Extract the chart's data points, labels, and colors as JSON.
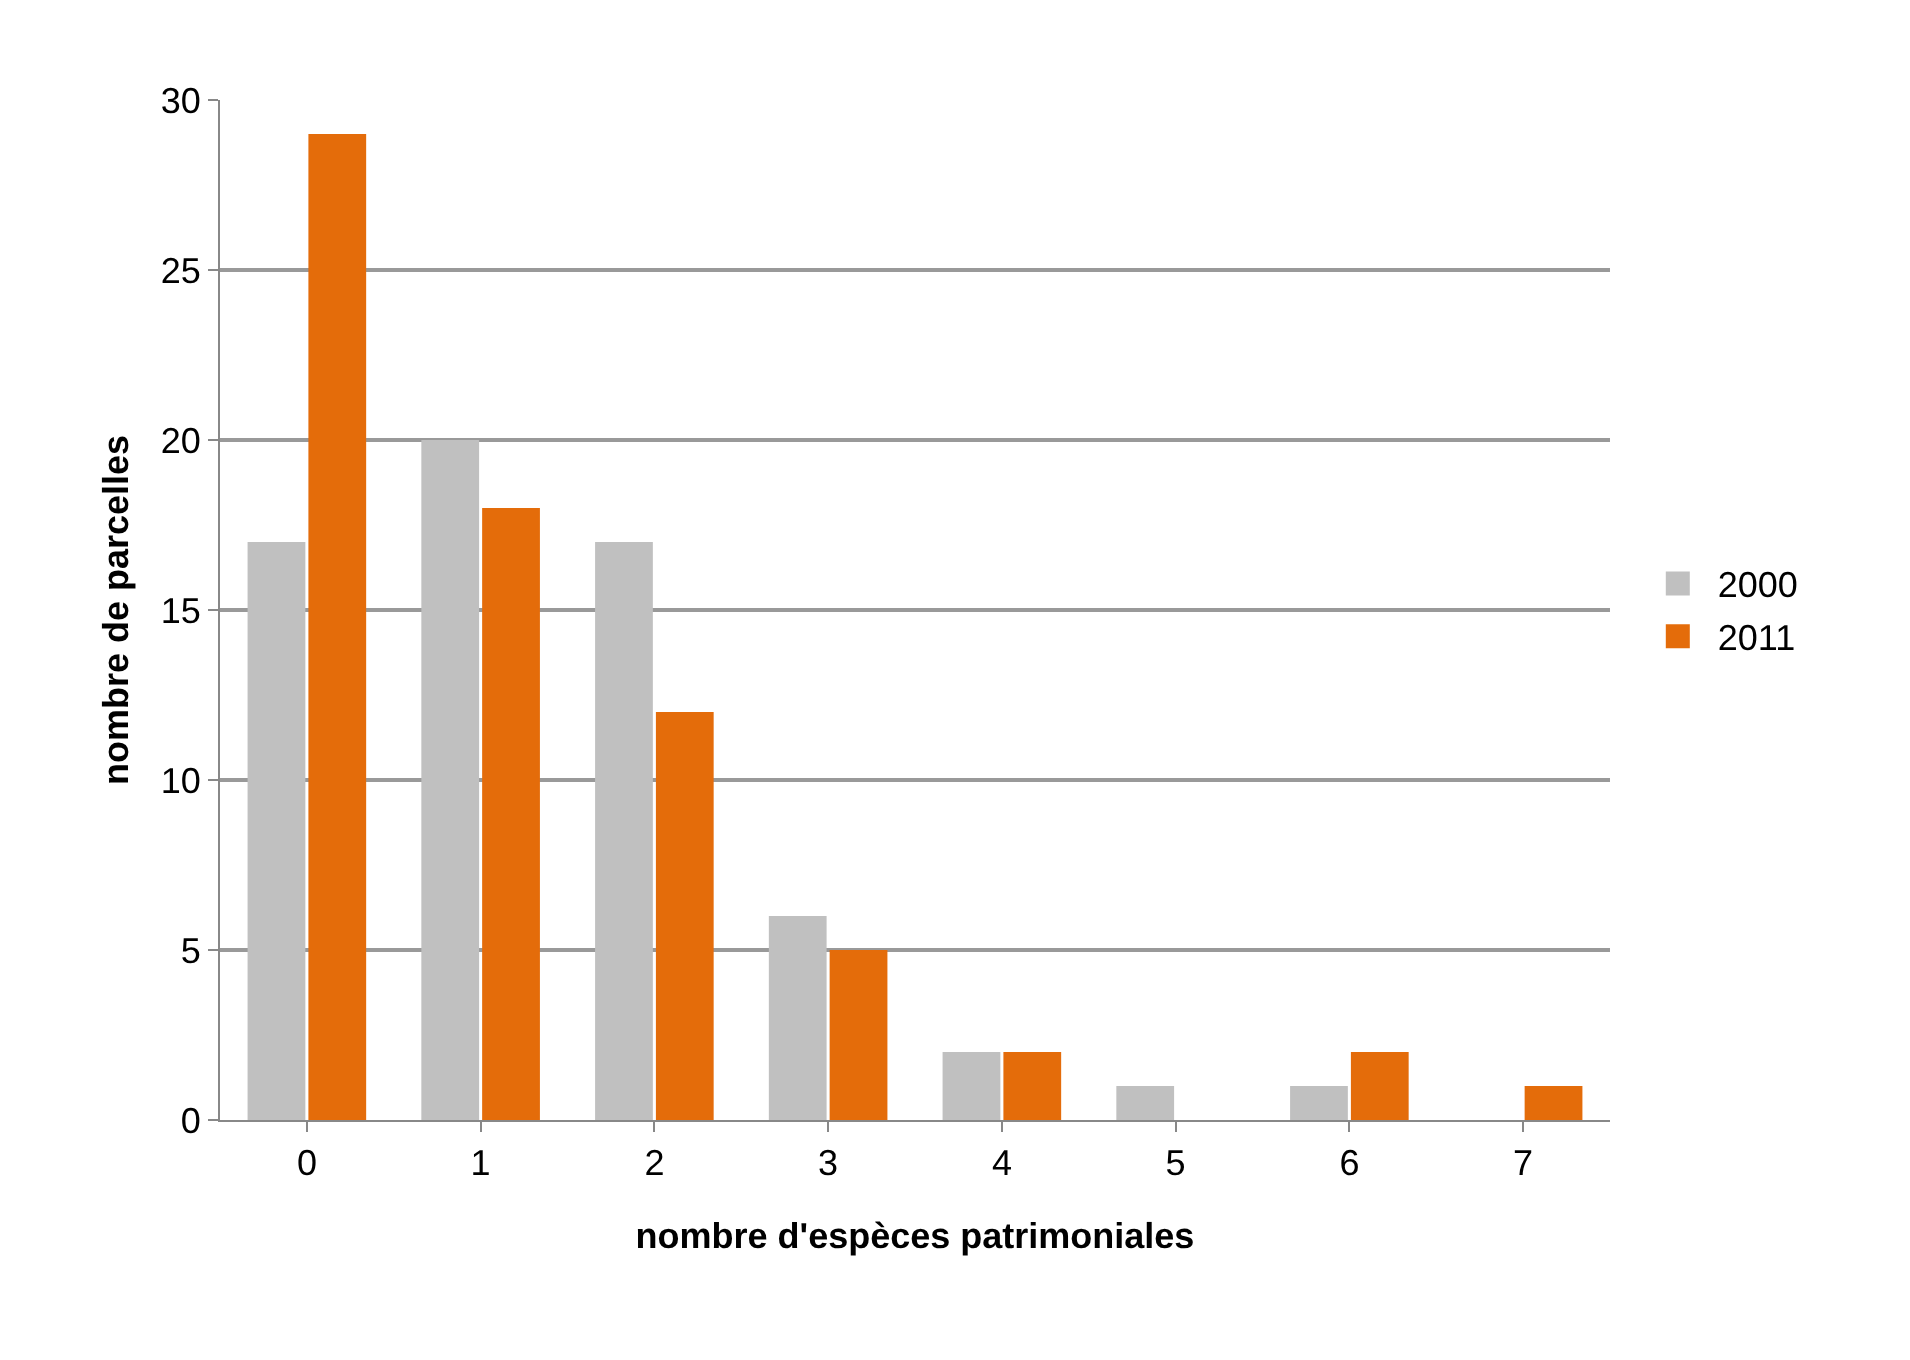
{
  "chart_data": {
    "type": "bar",
    "xlabel": "nombre d'espèces patrimoniales",
    "ylabel": "nombre de parcelles",
    "categories": [
      "0",
      "1",
      "2",
      "3",
      "4",
      "5",
      "6",
      "7"
    ],
    "series": [
      {
        "name": "2000",
        "color": "#c0c0c0",
        "values": [
          17,
          20,
          17,
          6,
          2,
          1,
          1,
          0
        ]
      },
      {
        "name": "2011",
        "color": "#e46c0a",
        "values": [
          29,
          18,
          12,
          5,
          2,
          0,
          2,
          1
        ]
      }
    ],
    "ylim": [
      0,
      30
    ],
    "yticks": [
      0,
      5,
      10,
      15,
      20,
      25,
      30
    ],
    "grid": "y",
    "legend": "right"
  }
}
